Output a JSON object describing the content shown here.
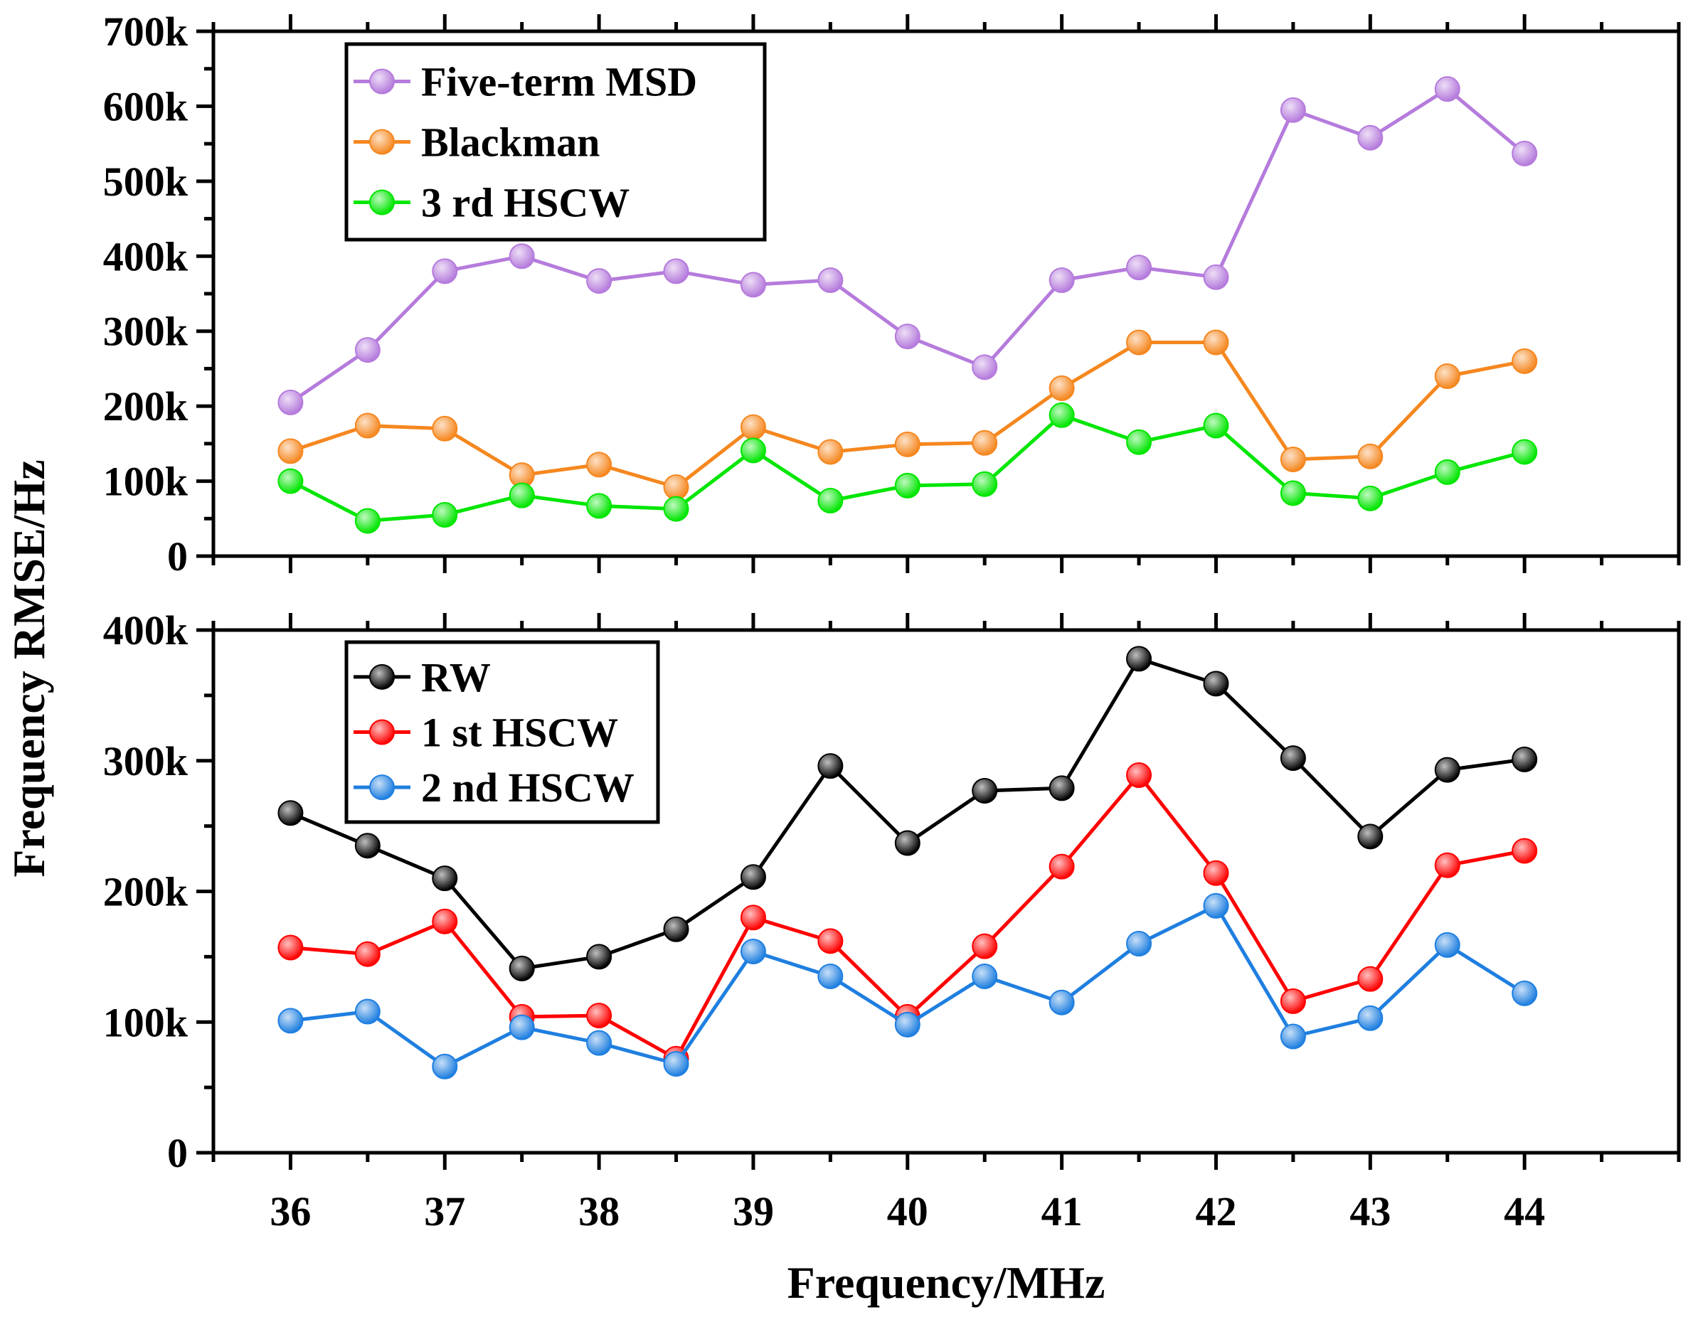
{
  "figure": {
    "ylabel": "Frequency RMSE/Hz",
    "xlabel": "Frequency/MHz"
  },
  "chart_data": [
    {
      "type": "line",
      "panel": "top",
      "x": [
        36,
        36.5,
        37,
        37.5,
        38,
        38.5,
        39,
        39.5,
        40,
        40.5,
        41,
        41.5,
        42,
        42.5,
        43,
        43.5,
        44
      ],
      "xlim": [
        35.5,
        45.0
      ],
      "xticks": [
        36,
        37,
        38,
        39,
        40,
        41,
        42,
        43,
        44
      ],
      "xtick_labels": [
        "36",
        "37",
        "38",
        "39",
        "40",
        "41",
        "42",
        "43",
        "44"
      ],
      "ylim": [
        0,
        700000
      ],
      "yticks": [
        0,
        100000,
        200000,
        300000,
        400000,
        500000,
        600000,
        700000
      ],
      "ytick_labels": [
        "0",
        "100k",
        "200k",
        "300k",
        "400k",
        "500k",
        "600k",
        "700k"
      ],
      "legend_position": "top-left",
      "series": [
        {
          "name": "Five-term MSD",
          "color": "#b57bdc",
          "values": [
            205000,
            275000,
            380000,
            400000,
            367000,
            380000,
            362000,
            368000,
            293000,
            252000,
            368000,
            385000,
            372000,
            595000,
            558000,
            623000,
            537000
          ]
        },
        {
          "name": "Blackman",
          "color": "#f5871f",
          "values": [
            140000,
            174000,
            170000,
            108000,
            122000,
            92000,
            172000,
            139000,
            149000,
            151000,
            224000,
            285000,
            285000,
            129000,
            133000,
            240000,
            260000
          ]
        },
        {
          "name": "3 rd HSCW",
          "color": "#00e600",
          "values": [
            100000,
            47000,
            55000,
            81000,
            67000,
            63000,
            141000,
            74000,
            94000,
            96000,
            188000,
            152000,
            174000,
            84000,
            77000,
            112000,
            139000
          ]
        }
      ]
    },
    {
      "type": "line",
      "panel": "bottom",
      "x": [
        36,
        36.5,
        37,
        37.5,
        38,
        38.5,
        39,
        39.5,
        40,
        40.5,
        41,
        41.5,
        42,
        42.5,
        43,
        43.5,
        44
      ],
      "xlim": [
        35.5,
        45.0
      ],
      "xticks": [
        36,
        37,
        38,
        39,
        40,
        41,
        42,
        43,
        44
      ],
      "xtick_labels": [
        "36",
        "37",
        "38",
        "39",
        "40",
        "41",
        "42",
        "43",
        "44"
      ],
      "ylim": [
        0,
        400000
      ],
      "yticks": [
        0,
        100000,
        200000,
        300000,
        400000
      ],
      "ytick_labels": [
        "0",
        "100k",
        "200k",
        "300k",
        "400k"
      ],
      "legend_position": "top-left",
      "series": [
        {
          "name": "RW",
          "color": "#000000",
          "values": [
            260000,
            235000,
            210000,
            141000,
            150000,
            171000,
            211000,
            296000,
            237000,
            277000,
            279000,
            378000,
            359000,
            302000,
            242000,
            293000,
            301000
          ]
        },
        {
          "name": "1 st HSCW",
          "color": "#ff0000",
          "values": [
            157000,
            152000,
            177000,
            104000,
            105000,
            72000,
            180000,
            162000,
            104000,
            158000,
            219000,
            289000,
            214000,
            116000,
            133000,
            220000,
            231000
          ]
        },
        {
          "name": "2 nd HSCW",
          "color": "#1f7fe0",
          "values": [
            101000,
            108000,
            66000,
            96000,
            84000,
            68000,
            154000,
            135000,
            98000,
            135000,
            115000,
            160000,
            189000,
            89000,
            103000,
            159000,
            122000
          ]
        }
      ]
    }
  ]
}
